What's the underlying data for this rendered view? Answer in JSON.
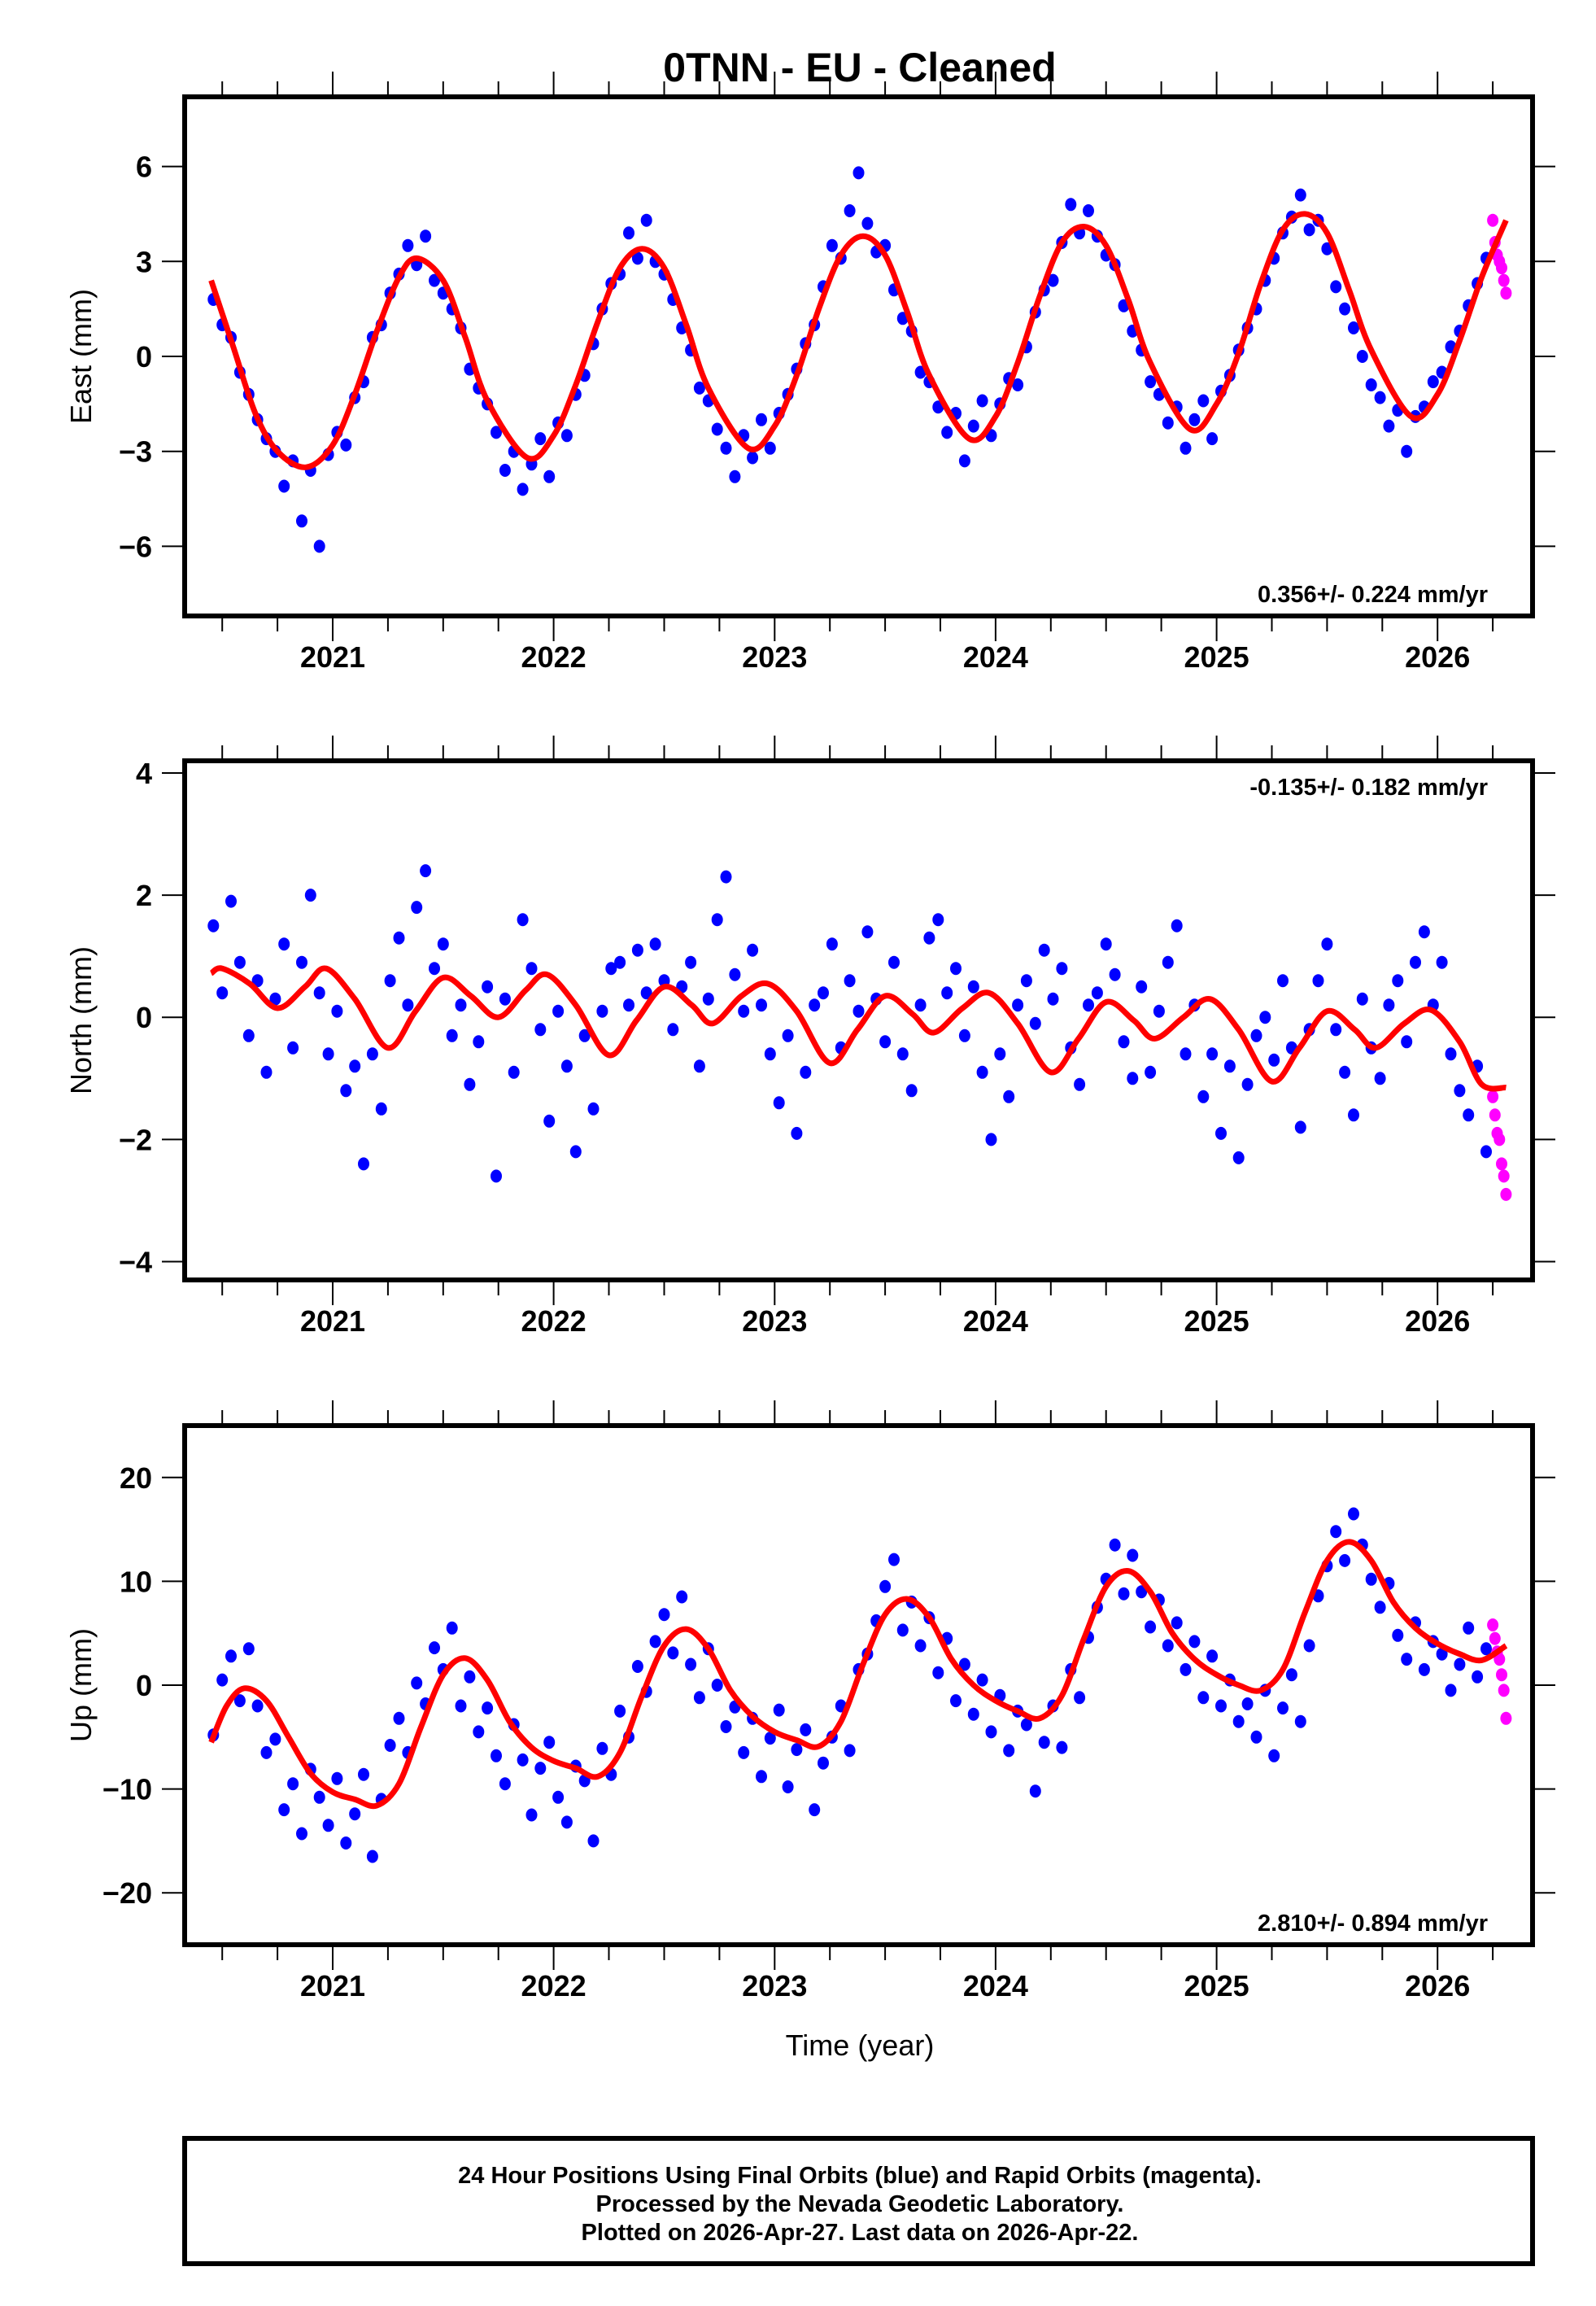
{
  "chart_data": {
    "type": "scatter",
    "title": "0TNN  - EU - Cleaned",
    "xlabel": "Time (year)",
    "xlim": [
      2020.33,
      2026.43
    ],
    "xticks": [
      2021,
      2022,
      2023,
      2024,
      2025,
      2026
    ],
    "xtick_labels": [
      "2021",
      "2022",
      "2023",
      "2024",
      "2025",
      "2026"
    ],
    "x_minor_tick_step": 0.25,
    "grid": false,
    "colors": {
      "final_orbits": "#0000ff",
      "rapid_orbits": "#ff00ff",
      "model_fit": "#ff0000",
      "frame": "#000000"
    },
    "panels": [
      {
        "name": "east",
        "ylabel": "East (mm)",
        "ylim": [
          -8.2,
          8.2
        ],
        "yticks": [
          -6,
          -3,
          0,
          3,
          6
        ],
        "ytick_labels": [
          "−6",
          "−3",
          "0",
          "3",
          "6"
        ],
        "rate_text": "0.356+/- 0.224 mm/yr",
        "rate_position": "bottom-right",
        "final_orbits": {
          "t0": 2020.46,
          "dt": 0.04,
          "values": [
            1.8,
            1.0,
            0.6,
            -0.5,
            -1.2,
            -2.0,
            -2.6,
            -3.0,
            -4.1,
            -3.3,
            -5.2,
            -3.6,
            -6.0,
            -3.1,
            -2.4,
            -2.8,
            -1.3,
            -0.8,
            0.6,
            1.0,
            2.0,
            2.6,
            3.5,
            2.9,
            3.8,
            2.4,
            2.0,
            1.5,
            0.9,
            -0.4,
            -1.0,
            -1.5,
            -2.4,
            -3.6,
            -3.0,
            -4.2,
            -3.4,
            -2.6,
            -3.8,
            -2.1,
            -2.5,
            -1.2,
            -0.6,
            0.4,
            1.5,
            2.3,
            2.6,
            3.9,
            3.1,
            4.3,
            3.0,
            2.6,
            1.8,
            0.9,
            0.2,
            -1.0,
            -1.4,
            -2.3,
            -2.9,
            -3.8,
            -2.5,
            -3.2,
            -2.0,
            -2.9,
            -1.8,
            -1.2,
            -0.4,
            0.4,
            1.0,
            2.2,
            3.5,
            3.1,
            4.6,
            5.8,
            4.2,
            3.3,
            3.5,
            2.1,
            1.2,
            0.8,
            -0.5,
            -0.8,
            -1.6,
            -2.4,
            -1.8,
            -3.3,
            -2.2,
            -1.4,
            -2.5,
            -1.5,
            -0.7,
            -0.9,
            0.3,
            1.4,
            2.1,
            2.4,
            3.6,
            4.8,
            3.9,
            4.6,
            3.8,
            3.2,
            2.9,
            1.6,
            0.8,
            0.2,
            -0.8,
            -1.2,
            -2.1,
            -1.6,
            -2.9,
            -2.0,
            -1.4,
            -2.6,
            -1.1,
            -0.6,
            0.2,
            0.9,
            1.5,
            2.4,
            3.1,
            3.9,
            4.4,
            5.1,
            4.0,
            4.3,
            3.4,
            2.2,
            1.5,
            0.9,
            0.0,
            -0.9,
            -1.3,
            -2.2,
            -1.7,
            -3.0,
            -1.9,
            -1.6,
            -0.8,
            -0.5,
            0.3,
            0.8,
            1.6,
            2.3,
            3.1
          ]
        },
        "rapid_orbits": {
          "t": [
            2026.25,
            2026.26,
            2026.27,
            2026.28,
            2026.29,
            2026.3,
            2026.31
          ],
          "values": [
            4.3,
            3.6,
            3.2,
            3.0,
            2.8,
            2.4,
            2.0
          ]
        },
        "model_fit": {
          "t": [
            2020.45,
            2020.55,
            2020.65,
            2020.75,
            2020.88,
            2021.0,
            2021.1,
            2021.2,
            2021.3,
            2021.38,
            2021.5,
            2021.6,
            2021.7,
            2021.88,
            2022.0,
            2022.1,
            2022.2,
            2022.3,
            2022.4,
            2022.5,
            2022.6,
            2022.7,
            2022.88,
            2023.0,
            2023.1,
            2023.2,
            2023.3,
            2023.4,
            2023.5,
            2023.6,
            2023.7,
            2023.88,
            2024.0,
            2024.1,
            2024.2,
            2024.3,
            2024.4,
            2024.5,
            2024.6,
            2024.7,
            2024.88,
            2025.0,
            2025.1,
            2025.2,
            2025.3,
            2025.4,
            2025.5,
            2025.6,
            2025.7,
            2025.88,
            2026.0,
            2026.1,
            2026.2,
            2026.31
          ],
          "values": [
            2.4,
            0.3,
            -1.8,
            -3.0,
            -3.5,
            -2.8,
            -1.2,
            0.8,
            2.5,
            3.1,
            2.4,
            0.6,
            -1.4,
            -3.2,
            -2.5,
            -0.9,
            1.1,
            2.8,
            3.4,
            2.8,
            1.0,
            -1.0,
            -2.9,
            -2.2,
            -0.6,
            1.5,
            3.2,
            3.8,
            3.2,
            1.4,
            -0.6,
            -2.6,
            -1.9,
            -0.2,
            1.9,
            3.6,
            4.1,
            3.5,
            1.8,
            -0.2,
            -2.3,
            -1.5,
            0.1,
            2.3,
            4.0,
            4.5,
            3.9,
            2.1,
            0.2,
            -1.9,
            -1.2,
            0.5,
            2.5,
            4.3
          ]
        }
      },
      {
        "name": "north",
        "ylabel": "North (mm)",
        "ylim": [
          -4.3,
          4.2
        ],
        "yticks": [
          -4,
          -2,
          0,
          2,
          4
        ],
        "ytick_labels": [
          "−4",
          "−2",
          "0",
          "2",
          "4"
        ],
        "rate_text": "-0.135+/- 0.182 mm/yr",
        "rate_position": "top-right",
        "final_orbits": {
          "t0": 2020.46,
          "dt": 0.04,
          "values": [
            1.5,
            0.4,
            1.9,
            0.9,
            -0.3,
            0.6,
            -0.9,
            0.3,
            1.2,
            -0.5,
            0.9,
            2.0,
            0.4,
            -0.6,
            0.1,
            -1.2,
            -0.8,
            -2.4,
            -0.6,
            -1.5,
            0.6,
            1.3,
            0.2,
            1.8,
            2.4,
            0.8,
            1.2,
            -0.3,
            0.2,
            -1.1,
            -0.4,
            0.5,
            -2.6,
            0.3,
            -0.9,
            1.6,
            0.8,
            -0.2,
            -1.7,
            0.1,
            -0.8,
            -2.2,
            -0.3,
            -1.5,
            0.1,
            0.8,
            0.9,
            0.2,
            1.1,
            0.4,
            1.2,
            0.6,
            -0.2,
            0.5,
            0.9,
            -0.8,
            0.3,
            1.6,
            2.3,
            0.7,
            0.1,
            1.1,
            0.2,
            -0.6,
            -1.4,
            -0.3,
            -1.9,
            -0.9,
            0.2,
            0.4,
            1.2,
            -0.5,
            0.6,
            0.1,
            1.4,
            0.3,
            -0.4,
            0.9,
            -0.6,
            -1.2,
            0.2,
            1.3,
            1.6,
            0.4,
            0.8,
            -0.3,
            0.5,
            -0.9,
            -2.0,
            -0.6,
            -1.3,
            0.2,
            0.6,
            -0.1,
            1.1,
            0.3,
            0.8,
            -0.5,
            -1.1,
            0.2,
            0.4,
            1.2,
            0.7,
            -0.4,
            -1.0,
            0.5,
            -0.9,
            0.1,
            0.9,
            1.5,
            -0.6,
            0.2,
            -1.3,
            -0.6,
            -1.9,
            -0.8,
            -2.3,
            -1.1,
            -0.3,
            0.0,
            -0.7,
            0.6,
            -0.5,
            -1.8,
            -0.2,
            0.6,
            1.2,
            -0.2,
            -0.9,
            -1.6,
            0.3,
            -0.5,
            -1.0,
            0.2,
            0.6,
            -0.4,
            0.9,
            1.4,
            0.2,
            0.9,
            -0.6,
            -1.2,
            -1.6,
            -0.8,
            -2.2
          ]
        },
        "rapid_orbits": {
          "t": [
            2026.25,
            2026.26,
            2026.27,
            2026.28,
            2026.29,
            2026.3,
            2026.31
          ],
          "values": [
            -1.3,
            -1.6,
            -1.9,
            -2.0,
            -2.4,
            -2.6,
            -2.9
          ]
        },
        "model_fit": {
          "t": [
            2020.45,
            2020.5,
            2020.625,
            2020.75,
            2020.875,
            2020.97,
            2021.1,
            2021.25,
            2021.375,
            2021.5,
            2021.625,
            2021.75,
            2021.875,
            2021.97,
            2022.1,
            2022.25,
            2022.375,
            2022.5,
            2022.625,
            2022.72,
            2022.85,
            2022.97,
            2023.1,
            2023.25,
            2023.375,
            2023.5,
            2023.625,
            2023.72,
            2023.85,
            2023.97,
            2024.1,
            2024.25,
            2024.375,
            2024.5,
            2024.625,
            2024.72,
            2024.85,
            2024.97,
            2025.1,
            2025.25,
            2025.375,
            2025.5,
            2025.625,
            2025.72,
            2025.85,
            2025.97,
            2026.1,
            2026.2,
            2026.31
          ],
          "values": [
            0.72,
            0.8,
            0.55,
            0.15,
            0.5,
            0.8,
            0.3,
            -0.5,
            0.1,
            0.65,
            0.35,
            0.0,
            0.45,
            0.7,
            0.2,
            -0.62,
            -0.05,
            0.5,
            0.2,
            -0.1,
            0.35,
            0.55,
            0.1,
            -0.75,
            -0.2,
            0.35,
            0.05,
            -0.25,
            0.15,
            0.4,
            -0.1,
            -0.9,
            -0.35,
            0.25,
            -0.05,
            -0.35,
            0.0,
            0.3,
            -0.2,
            -1.05,
            -0.5,
            0.1,
            -0.2,
            -0.5,
            -0.1,
            0.12,
            -0.4,
            -1.1,
            -1.15
          ]
        }
      },
      {
        "name": "up",
        "ylabel": "Up (mm)",
        "ylim": [
          -25,
          25
        ],
        "yticks": [
          -20,
          -10,
          0,
          10,
          20
        ],
        "ytick_labels": [
          "−20",
          "−10",
          "0",
          "10",
          "20"
        ],
        "rate_text": "2.810+/- 0.894 mm/yr",
        "rate_position": "bottom-right",
        "final_orbits": {
          "t0": 2020.46,
          "dt": 0.04,
          "values": [
            -4.8,
            0.5,
            2.8,
            -1.5,
            3.5,
            -2.0,
            -6.5,
            -5.2,
            -12.0,
            -9.5,
            -14.3,
            -8.1,
            -10.8,
            -13.5,
            -9.0,
            -15.2,
            -12.4,
            -8.6,
            -16.5,
            -11.0,
            -5.8,
            -3.2,
            -6.5,
            0.2,
            -1.8,
            3.6,
            1.5,
            5.5,
            -2.0,
            0.8,
            -4.5,
            -2.2,
            -6.8,
            -9.5,
            -3.8,
            -7.2,
            -12.5,
            -8.0,
            -5.5,
            -10.8,
            -13.2,
            -7.8,
            -9.2,
            -15.0,
            -6.1,
            -8.6,
            -2.5,
            -5.0,
            1.8,
            -0.6,
            4.2,
            6.8,
            3.1,
            8.5,
            2.0,
            -1.2,
            3.5,
            0.0,
            -4.0,
            -2.1,
            -6.5,
            -3.2,
            -8.8,
            -5.1,
            -2.4,
            -9.8,
            -6.2,
            -4.3,
            -12.0,
            -7.5,
            -5.0,
            -2.0,
            -6.3,
            1.5,
            3.0,
            6.2,
            9.5,
            12.1,
            5.3,
            8.0,
            3.8,
            6.5,
            1.2,
            4.5,
            -1.5,
            2.0,
            -2.8,
            0.5,
            -4.5,
            -1.0,
            -6.3,
            -2.5,
            -3.8,
            -10.2,
            -5.5,
            -2.0,
            -6.0,
            1.5,
            -1.2,
            4.6,
            7.5,
            10.2,
            13.5,
            8.8,
            12.5,
            9.0,
            5.6,
            8.2,
            3.8,
            6.0,
            1.5,
            4.2,
            -1.2,
            2.8,
            -2.0,
            0.5,
            -3.5,
            -1.8,
            -5.0,
            -0.5,
            -6.8,
            -2.2,
            1.0,
            -3.5,
            3.8,
            8.6,
            11.5,
            14.8,
            12.0,
            16.5,
            13.5,
            10.2,
            7.5,
            9.8,
            4.8,
            2.5,
            6.0,
            1.5,
            4.2,
            3.0,
            -0.5,
            2.0,
            5.5,
            0.8,
            3.5
          ]
        },
        "rapid_orbits": {
          "t": [
            2026.25,
            2026.26,
            2026.27,
            2026.28,
            2026.29,
            2026.3,
            2026.31
          ],
          "values": [
            5.8,
            4.5,
            3.2,
            2.5,
            1.0,
            -0.5,
            -3.2
          ]
        },
        "model_fit": {
          "t": [
            2020.45,
            2020.52,
            2020.6,
            2020.7,
            2020.8,
            2020.9,
            2021.0,
            2021.1,
            2021.2,
            2021.3,
            2021.4,
            2021.5,
            2021.6,
            2021.7,
            2021.8,
            2021.9,
            2022.0,
            2022.1,
            2022.2,
            2022.3,
            2022.4,
            2022.5,
            2022.6,
            2022.7,
            2022.8,
            2022.9,
            2023.0,
            2023.1,
            2023.2,
            2023.3,
            2023.4,
            2023.5,
            2023.6,
            2023.7,
            2023.8,
            2023.9,
            2024.0,
            2024.1,
            2024.2,
            2024.3,
            2024.4,
            2024.5,
            2024.6,
            2024.7,
            2024.8,
            2024.9,
            2025.0,
            2025.1,
            2025.2,
            2025.3,
            2025.4,
            2025.5,
            2025.6,
            2025.7,
            2025.8,
            2025.9,
            2026.0,
            2026.1,
            2026.2,
            2026.31
          ],
          "values": [
            -5.5,
            -2.0,
            -0.3,
            -1.5,
            -5.0,
            -8.5,
            -10.3,
            -11.0,
            -11.6,
            -9.5,
            -4.0,
            1.0,
            2.6,
            0.5,
            -3.5,
            -6.0,
            -7.3,
            -8.0,
            -8.8,
            -6.5,
            -1.0,
            3.8,
            5.4,
            3.5,
            -0.5,
            -3.0,
            -4.5,
            -5.3,
            -5.9,
            -3.5,
            2.0,
            6.8,
            8.3,
            6.5,
            2.5,
            0.0,
            -1.5,
            -2.5,
            -3.2,
            -1.0,
            4.5,
            9.5,
            11.0,
            9.0,
            5.0,
            2.5,
            1.0,
            0.0,
            -0.5,
            1.5,
            7.0,
            12.0,
            13.8,
            12.0,
            8.0,
            5.5,
            4.0,
            3.0,
            2.4,
            3.8
          ]
        }
      }
    ],
    "footer": [
      "24 Hour Positions Using Final Orbits (blue) and Rapid Orbits (magenta).",
      "Processed by the Nevada Geodetic Laboratory.",
      "Plotted on 2026-Apr-27. Last data on 2026-Apr-22."
    ]
  }
}
